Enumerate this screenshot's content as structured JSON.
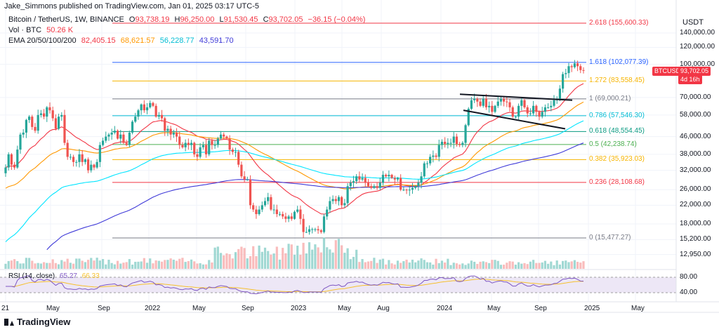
{
  "header": {
    "publisher": "Jake_Simmons published on TradingView.com, Jan 01, 2025 03:17 UTC-5",
    "symbol": "Bitcoin / TetherUS, 1W, BINANCE",
    "o_label": "O",
    "o_value": "93,738.19",
    "h_label": "H",
    "h_value": "96,250.00",
    "l_label": "L",
    "l_value": "91,530.45",
    "c_label": "C",
    "c_value": "93,702.05",
    "change": "−36.15 (−0.04%)",
    "vol_label": "Vol · BTC",
    "vol_value": "50.26 K",
    "ema_label": "EMA 20/50/100/200",
    "ema20": "82,405.15",
    "ema50": "68,621.57",
    "ema100": "56,228.77",
    "ema200": "43,591.70",
    "rsi_label": "RSI (14, close)",
    "rsi_value": "65.27",
    "rsi_ma": "66.33"
  },
  "currency": "USDT",
  "price_badge": {
    "symbol": "BTCUSDT",
    "price": "93,702.05",
    "countdown": "4d 16h"
  },
  "y_axis": [
    {
      "label": "140,000.00",
      "price": 140000
    },
    {
      "label": "120,000.00",
      "price": 120000
    },
    {
      "label": "100,000.00",
      "price": 100000
    },
    {
      "label": "70,000.00",
      "price": 70000
    },
    {
      "label": "58,000.00",
      "price": 58000
    },
    {
      "label": "46,000.00",
      "price": 46000
    },
    {
      "label": "38,000.00",
      "price": 38000
    },
    {
      "label": "32,000.00",
      "price": 32000
    },
    {
      "label": "26,000.00",
      "price": 26000
    },
    {
      "label": "22,000.00",
      "price": 22000
    },
    {
      "label": "18,000.00",
      "price": 18000
    },
    {
      "label": "15,200.00",
      "price": 15200
    },
    {
      "label": "12,950.00",
      "price": 12950
    }
  ],
  "rsi_axis": [
    "80.00",
    "40.00"
  ],
  "x_axis": [
    "21",
    "May",
    "Sep",
    "2022",
    "May",
    "Sep",
    "2023",
    "May",
    "Aug",
    "2024",
    "May",
    "Sep",
    "2025",
    "May"
  ],
  "fib_levels": [
    {
      "ratio": "2.618",
      "label": "2.618 (155,600.33)",
      "price": 155600.33,
      "color": "#f23645"
    },
    {
      "ratio": "1.618",
      "label": "1.618 (102,077.39)",
      "price": 102077.39,
      "color": "#2962ff"
    },
    {
      "ratio": "1.272",
      "label": "1.272 (83,558.45)",
      "price": 83558.45,
      "color": "#f6b400"
    },
    {
      "ratio": "1",
      "label": "1 (69,000.21)",
      "price": 69000.21,
      "color": "#787b86"
    },
    {
      "ratio": "0.786",
      "label": "0.786 (57,546.30)",
      "price": 57546.3,
      "color": "#00bcd4"
    },
    {
      "ratio": "0.618",
      "label": "0.618 (48,554.45)",
      "price": 48554.45,
      "color": "#089981"
    },
    {
      "ratio": "0.5",
      "label": "0.5 (42,238.74)",
      "price": 42238.74,
      "color": "#4caf50"
    },
    {
      "ratio": "0.382",
      "label": "0.382 (35,923.03)",
      "price": 35923.03,
      "color": "#f6b400"
    },
    {
      "ratio": "0.236",
      "label": "0.236 (28,108.68)",
      "price": 28108.68,
      "color": "#f23645"
    },
    {
      "ratio": "0",
      "label": "0 (15,477.27)",
      "price": 15477.27,
      "color": "#787b86"
    }
  ],
  "colors": {
    "up": "#26a69a",
    "down": "#ef5350",
    "ema20": "#f23645",
    "ema50": "#ff9800",
    "ema100": "#00e5ff",
    "ema200": "#3f3ad8",
    "rsi": "#7e57c2",
    "rsi_ma": "#f6c02d",
    "rsi_band": "#ede7f6"
  },
  "brand": "TradingView"
}
